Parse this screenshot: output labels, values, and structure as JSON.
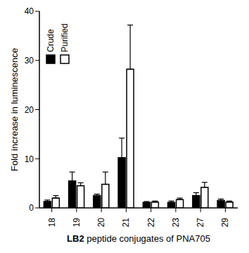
{
  "chart_data": {
    "type": "bar",
    "categories": [
      "18",
      "19",
      "20",
      "21",
      "22",
      "23",
      "27",
      "29"
    ],
    "x_label": "LB2 peptide conjugates of PNA705",
    "y_label": "Fold increase in luminescence",
    "ylim": [
      0,
      40
    ],
    "yticks": [
      0,
      10,
      20,
      30,
      40
    ],
    "legend": "upper left",
    "series": [
      {
        "name": "Crude",
        "color": "#000000",
        "values": [
          1.3,
          5.5,
          2.5,
          10.2,
          1.1,
          1.1,
          2.5,
          1.5
        ],
        "errors": [
          0.3,
          1.8,
          0.3,
          4.0,
          0.2,
          0.3,
          0.6,
          0.3
        ]
      },
      {
        "name": "Purified",
        "color": "#ffffff",
        "values": [
          2.0,
          4.5,
          4.8,
          28.2,
          1.2,
          1.7,
          4.2,
          1.2
        ],
        "errors": [
          0.5,
          0.6,
          2.5,
          9.0,
          0.2,
          0.3,
          1.0,
          0.2
        ]
      }
    ]
  }
}
